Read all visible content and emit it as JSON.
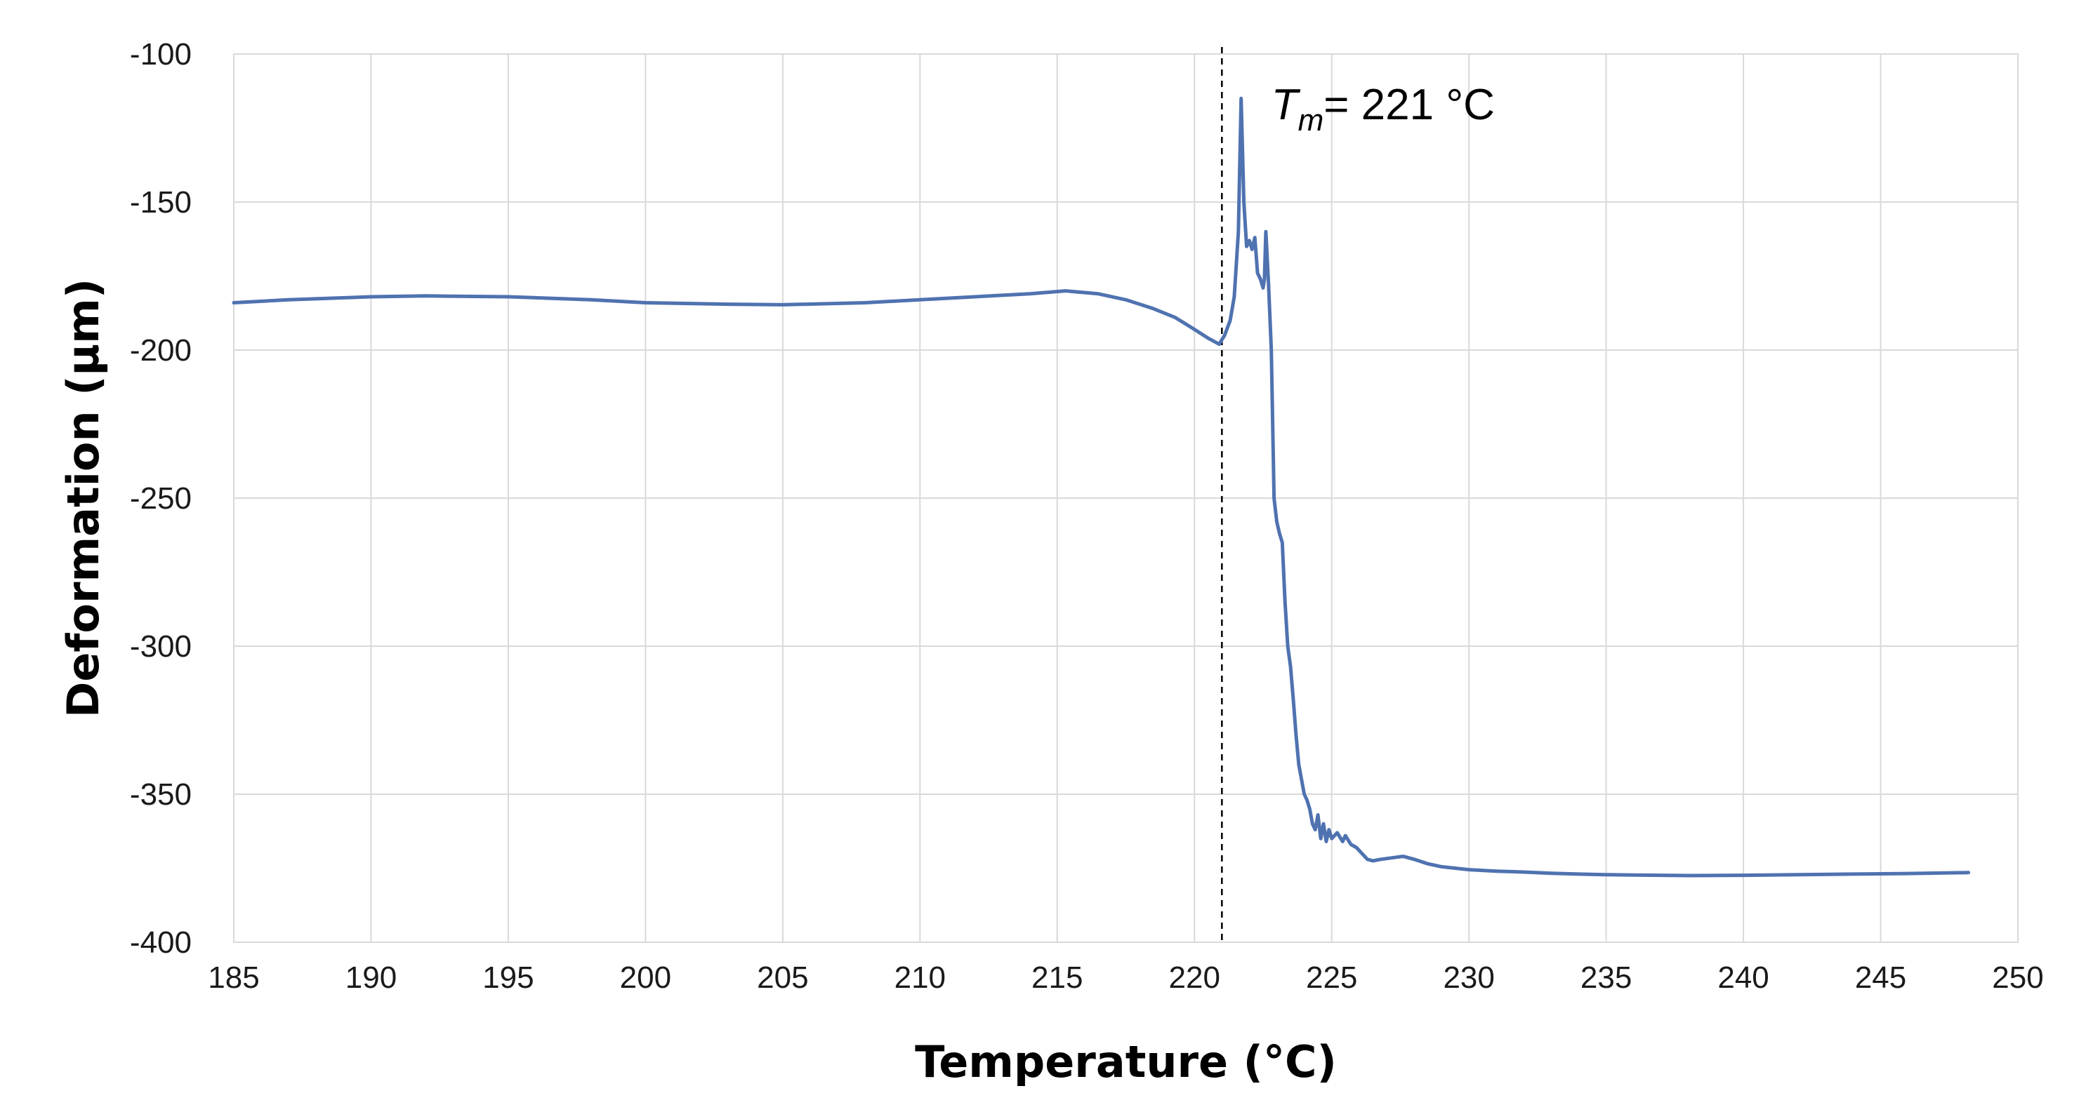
{
  "chart_data": {
    "type": "line",
    "title": "",
    "xlabel": "Temperature (°C)",
    "ylabel": "Deformation (µm)",
    "xlim": [
      185,
      250
    ],
    "ylim": [
      -400,
      -100
    ],
    "xticks": [
      185,
      190,
      195,
      200,
      205,
      210,
      215,
      220,
      225,
      230,
      235,
      240,
      245,
      250
    ],
    "yticks": [
      -100,
      -150,
      -200,
      -250,
      -300,
      -350,
      -400
    ],
    "grid": true,
    "annotation": {
      "prefix": "T",
      "subscript": "m",
      "suffix": "= 221 °C",
      "x": 221.0
    },
    "series": [
      {
        "name": "Deformation",
        "color": "#4f72b0",
        "x": [
          185,
          187,
          190,
          192,
          195,
          198,
          200,
          203,
          205,
          208,
          210,
          212,
          214,
          215.3,
          216.5,
          217.5,
          218.5,
          219.3,
          220.0,
          220.5,
          220.9,
          221.1,
          221.3,
          221.45,
          221.6,
          221.7,
          221.8,
          221.9,
          222.0,
          222.1,
          222.2,
          222.3,
          222.4,
          222.5,
          222.55,
          222.6,
          222.7,
          222.8,
          222.9,
          223.0,
          223.1,
          223.2,
          223.3,
          223.4,
          223.5,
          223.6,
          223.7,
          223.8,
          223.9,
          224.0,
          224.1,
          224.2,
          224.3,
          224.4,
          224.5,
          224.6,
          224.7,
          224.8,
          224.9,
          225.0,
          225.2,
          225.4,
          225.5,
          225.7,
          225.9,
          226.1,
          226.3,
          226.5,
          226.8,
          227.2,
          227.6,
          228.0,
          228.5,
          229.0,
          229.5,
          230.0,
          231.0,
          232.0,
          233.0,
          234.0,
          235.0,
          236.0,
          238.0,
          240.0,
          242.0,
          244.0,
          246.0,
          248.2
        ],
        "values": [
          -184,
          -183,
          -182,
          -181.7,
          -182,
          -183,
          -184,
          -184.5,
          -184.7,
          -184,
          -183,
          -182,
          -181,
          -180,
          -181,
          -183,
          -186,
          -189,
          -193,
          -196,
          -198,
          -195,
          -190,
          -182,
          -160,
          -115,
          -150,
          -165,
          -163,
          -166,
          -162,
          -174,
          -176,
          -179,
          -176,
          -160,
          -178,
          -200,
          -250,
          -258,
          -262,
          -265,
          -285,
          -300,
          -307,
          -318,
          -330,
          -340,
          -345,
          -350,
          -352,
          -355,
          -360,
          -362,
          -357,
          -365,
          -360,
          -366,
          -362,
          -365,
          -363,
          -366,
          -364,
          -367,
          -368,
          -370,
          -372,
          -372.5,
          -372,
          -371.5,
          -371,
          -372,
          -373.5,
          -374.5,
          -375,
          -375.5,
          -376,
          -376.3,
          -376.7,
          -377,
          -377.2,
          -377.3,
          -377.5,
          -377.4,
          -377.2,
          -377,
          -376.8,
          -376.5
        ]
      }
    ]
  }
}
